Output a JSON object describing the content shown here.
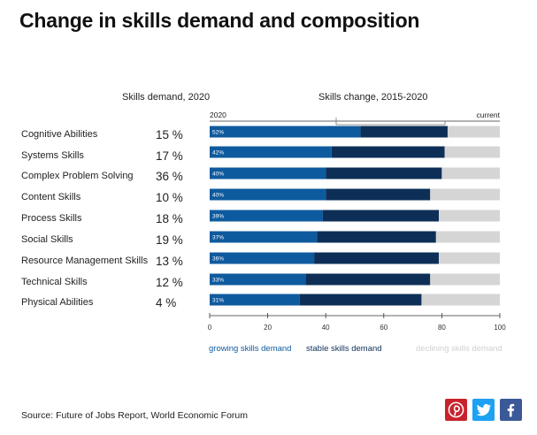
{
  "title": "Change in skills demand and composition",
  "headers": {
    "skills_demand": "Skills demand,  2020",
    "skills_change": "Skills change, 2015-2020"
  },
  "rows": [
    {
      "label": "Cognitive Abilities",
      "pct": "15 %"
    },
    {
      "label": "Systems Skills",
      "pct": "17 %"
    },
    {
      "label": "Complex Problem Solving",
      "pct": "36 %"
    },
    {
      "label": "Content Skills",
      "pct": "10 %"
    },
    {
      "label": "Process Skills",
      "pct": "18 %"
    },
    {
      "label": "Social Skills",
      "pct": "19 %"
    },
    {
      "label": "Resource Management Skills",
      "pct": "13 %"
    },
    {
      "label": "Technical Skills",
      "pct": "12 %"
    },
    {
      "label": "Physical Abilities",
      "pct": "4 %"
    }
  ],
  "chart_data": {
    "type": "bar",
    "orientation": "horizontal",
    "stacked": true,
    "top_axis_labels": {
      "left": "2020",
      "right": "current"
    },
    "categories": [
      "Cognitive Abilities",
      "Systems Skills",
      "Complex Problem Solving",
      "Content Skills",
      "Process Skills",
      "Social Skills",
      "Resource Management Skills",
      "Technical Skills",
      "Physical Abilities"
    ],
    "series": [
      {
        "name": "growing skills demand",
        "values": [
          52,
          42,
          40,
          40,
          39,
          37,
          36,
          33,
          31
        ],
        "color": "#0e5a9e"
      },
      {
        "name": "stable skills demand",
        "values": [
          30,
          39,
          40,
          36,
          40,
          41,
          43,
          43,
          42
        ],
        "color": "#0d2f57"
      },
      {
        "name": "declining skills demand",
        "values": [
          18,
          19,
          20,
          24,
          21,
          22,
          21,
          24,
          27
        ],
        "color": "#d5d5d5"
      }
    ],
    "bar_value_labels": [
      "52%",
      "42%",
      "40%",
      "40%",
      "39%",
      "37%",
      "36%",
      "33%",
      "31%"
    ],
    "x_ticks": [
      0,
      20,
      40,
      60,
      80,
      100
    ],
    "xlim": [
      0,
      100
    ]
  },
  "source": "Source: Future of Jobs Report, World Economic Forum",
  "share": [
    {
      "name": "pinterest-icon",
      "color": "#c8232c"
    },
    {
      "name": "twitter-icon",
      "color": "#1da1f2"
    },
    {
      "name": "facebook-icon",
      "color": "#3b5998"
    }
  ]
}
